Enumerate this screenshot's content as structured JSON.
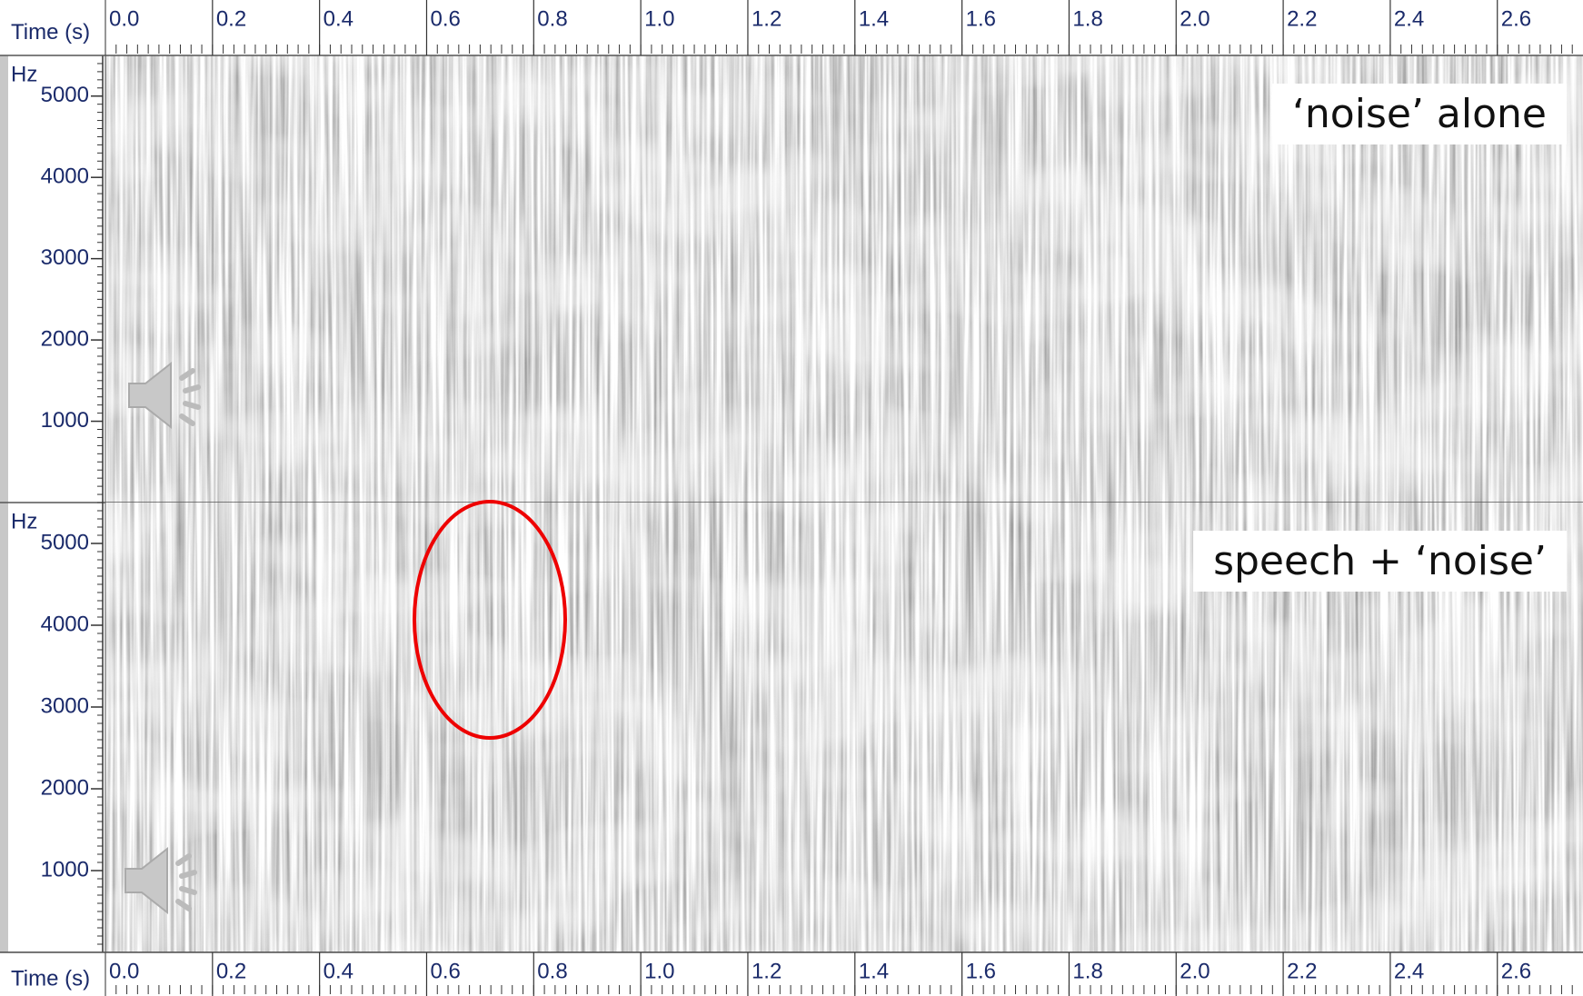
{
  "chart_data": {
    "type": "spectrogram",
    "x_label": "Time (s)",
    "y_label": "Hz",
    "xlim": [
      0,
      2.76
    ],
    "xticks": [
      {
        "value": 0,
        "label": "0.0"
      },
      0.2,
      0.4,
      0.6,
      0.8,
      {
        "value": 1,
        "label": "1.0"
      },
      1.2,
      1.4,
      1.6,
      1.8,
      {
        "value": 2,
        "label": "2.0"
      },
      2.2,
      2.4,
      2.6
    ],
    "ylim": [
      0,
      5500
    ],
    "yticks": [
      1000,
      2000,
      3000,
      4000,
      5000
    ],
    "panels": [
      {
        "label": "‘noise’ alone"
      },
      {
        "label": "speech + ‘noise’"
      }
    ]
  }
}
